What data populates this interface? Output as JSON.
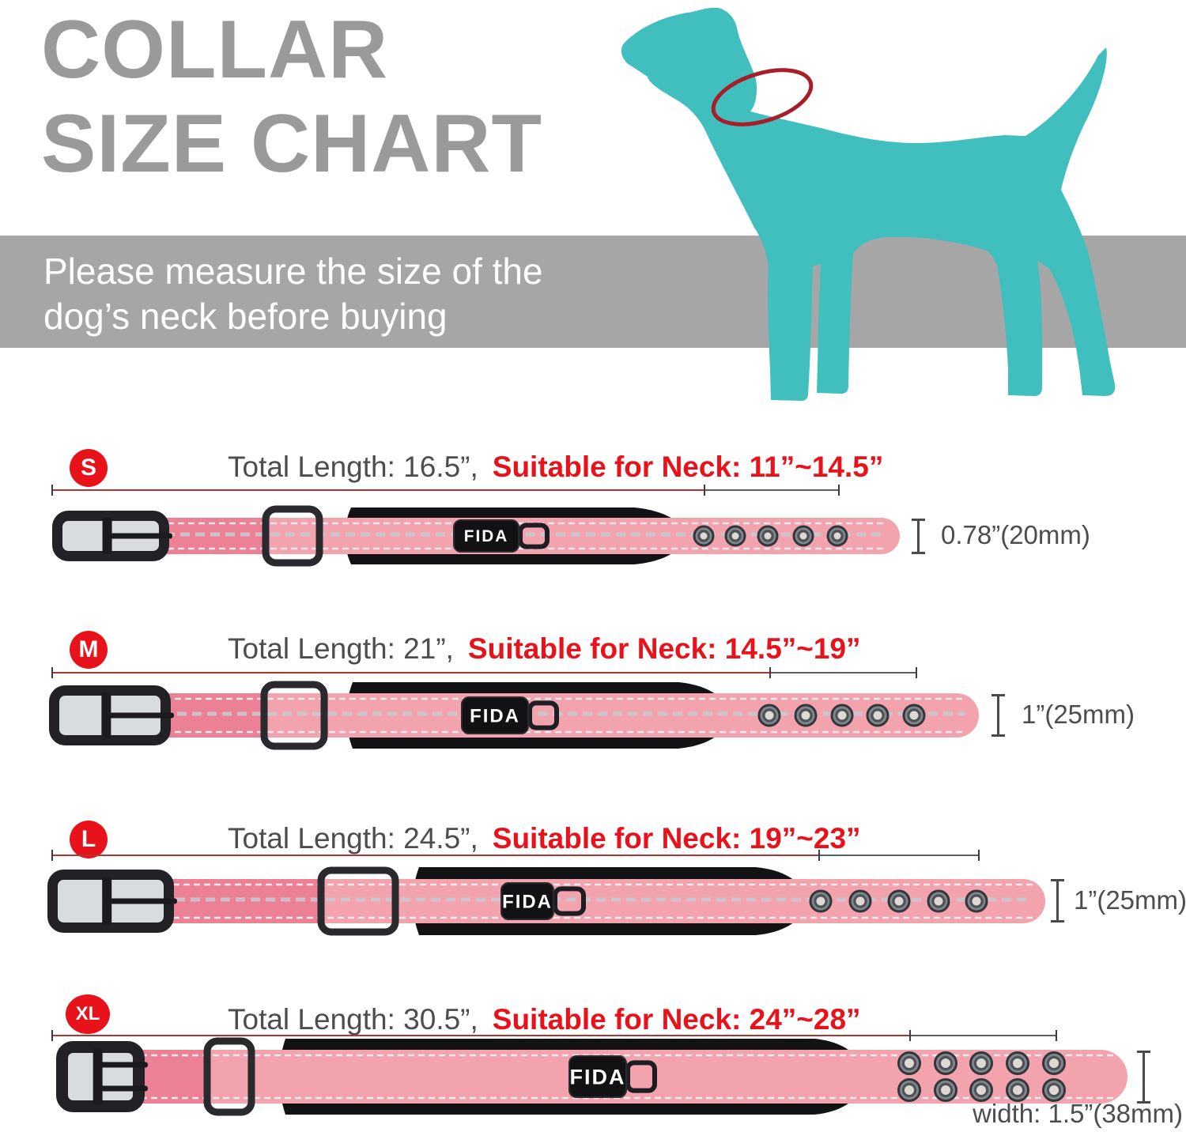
{
  "colors": {
    "accent_red": "#e8121a",
    "collar_line_red": "#b23530",
    "title_gray": "#9a9a9a",
    "banner_gray": "#a6a6a6",
    "text_gray": "#4d4d4d",
    "dog_teal": "#41bfbf",
    "collar_pink": "#f2a3ad",
    "collar_dark_pink": "#ec8094",
    "neck_ring_red": "#a81e28"
  },
  "title": {
    "line1": "COLLAR",
    "line2": "SIZE CHART"
  },
  "banner": {
    "line1": "Please measure the size of the",
    "line2": "dog’s neck before buying"
  },
  "brand": "FIDA",
  "rows": [
    {
      "size": "S",
      "total": "Total Length: 16.5”,",
      "neck": "Suitable for Neck: 11”~14.5”",
      "width": "0.78”(20mm)"
    },
    {
      "size": "M",
      "total": "Total Length: 21”,",
      "neck": "Suitable for Neck: 14.5”~19”",
      "width": "1”(25mm)"
    },
    {
      "size": "L",
      "total": "Total Length: 24.5”,",
      "neck": "Suitable for Neck: 19”~23”",
      "width": "1”(25mm)"
    },
    {
      "size": "XL",
      "total": "Total Length: 30.5”,",
      "neck": "Suitable for Neck: 24”~28”",
      "width": "width: 1.5”(38mm)"
    }
  ]
}
